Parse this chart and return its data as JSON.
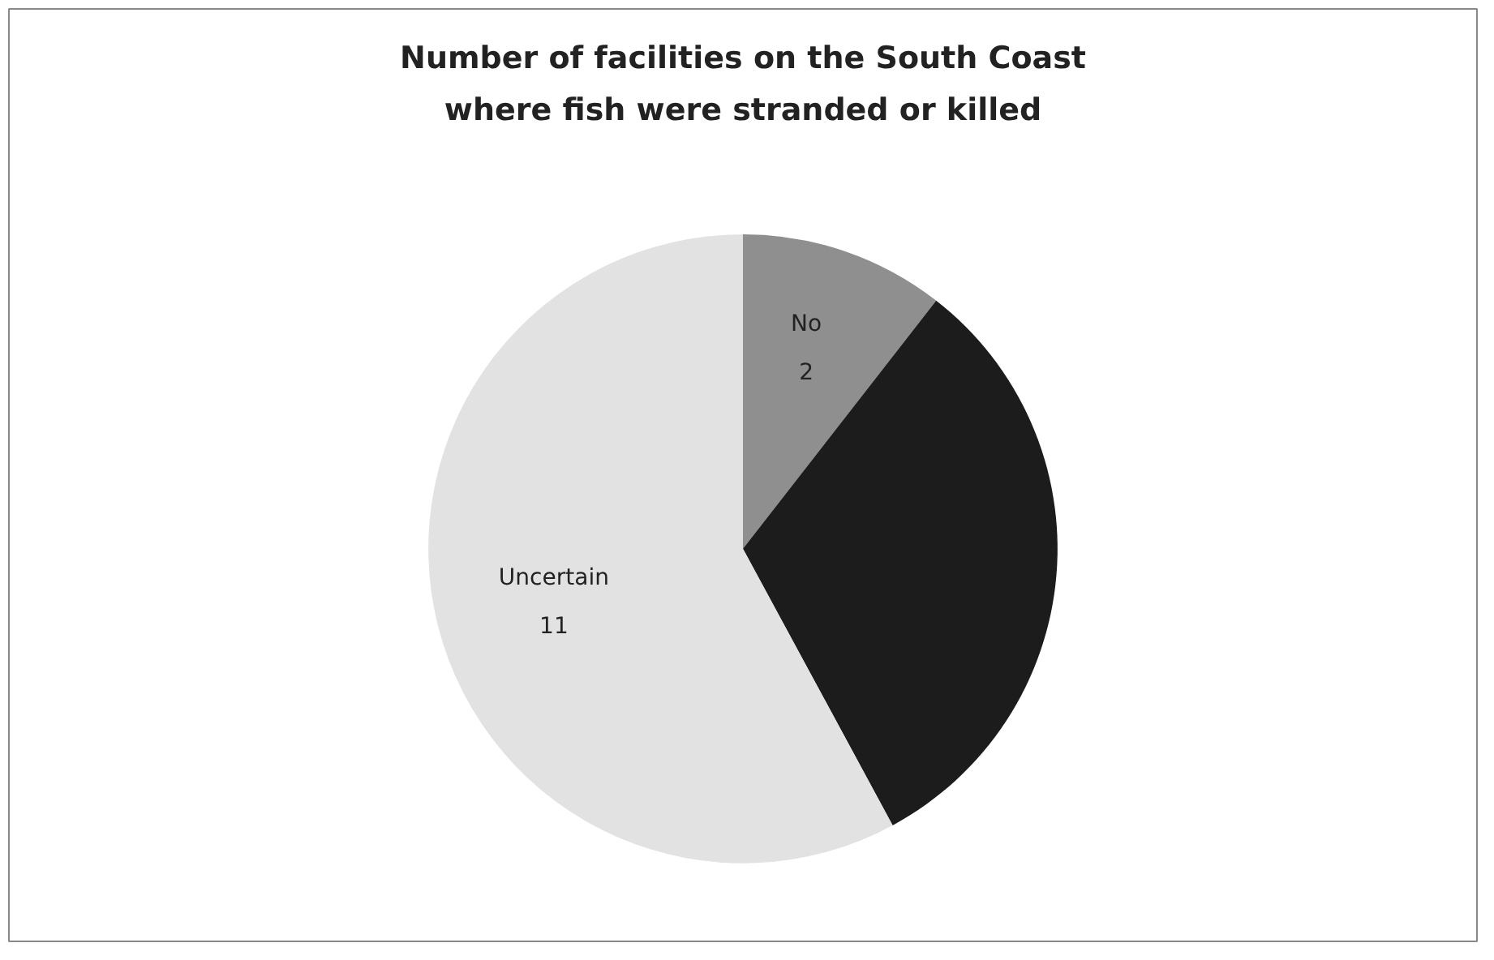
{
  "chart_data": {
    "type": "pie",
    "title": "Number of facilities on the South Coast\nwhere fish were stranded or killed",
    "categories": [
      "No",
      null,
      "Uncertain"
    ],
    "values": [
      2,
      6,
      11
    ],
    "value_labels": [
      "2",
      null,
      "11"
    ],
    "colors": [
      "#8f8f8f",
      "#1c1c1c",
      "#e2e2e2"
    ]
  }
}
